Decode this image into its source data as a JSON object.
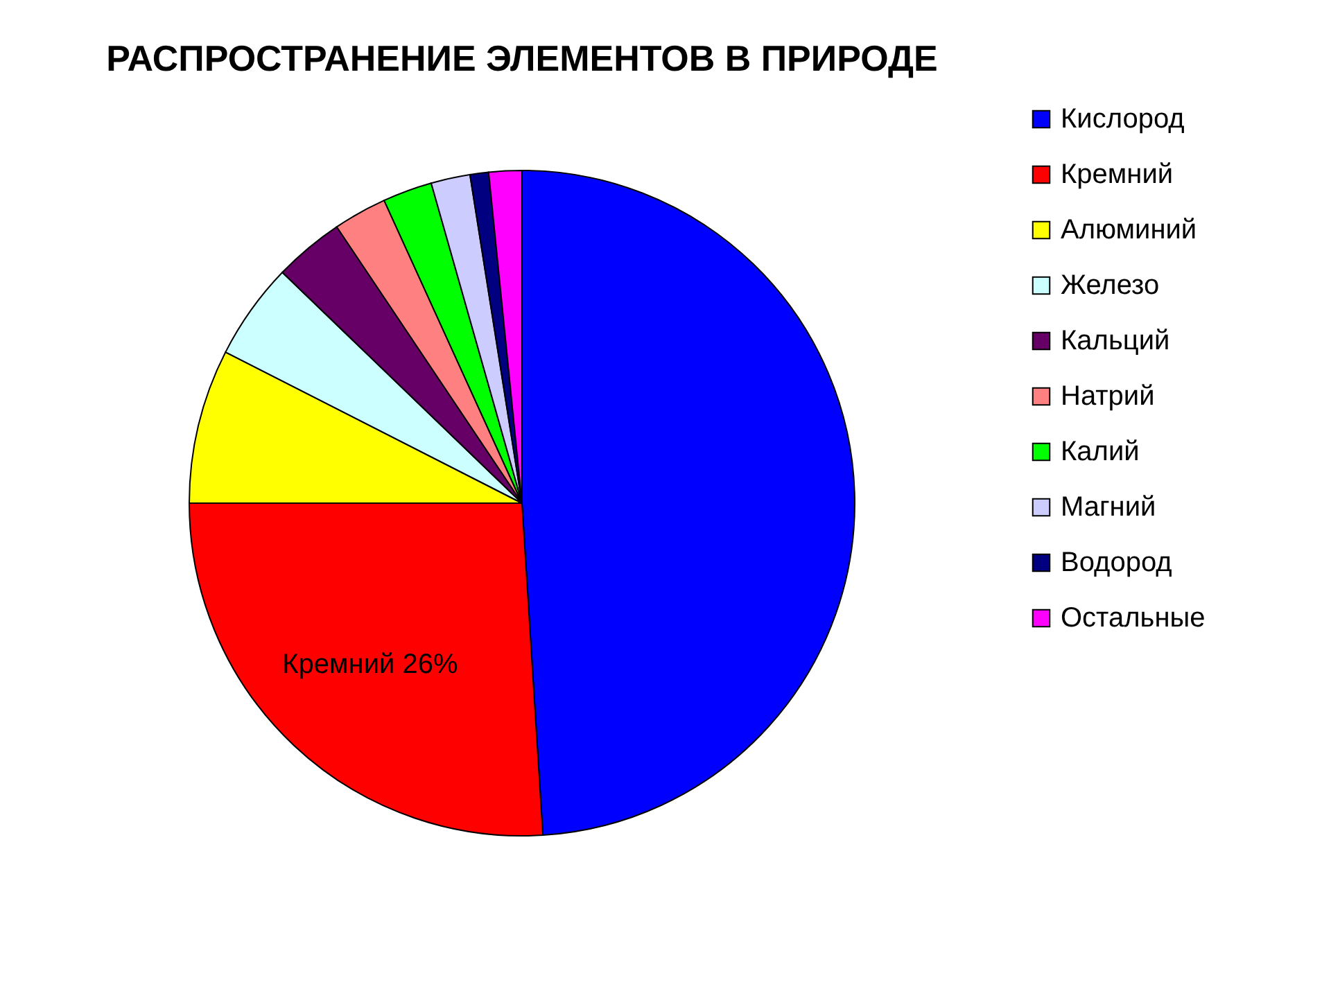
{
  "chart_data": {
    "type": "pie",
    "title": "РАСПРОСТРАНЕНИЕ ЭЛЕМЕНТОВ В ПРИРОДЕ",
    "categories": [
      "Кислород",
      "Кремний",
      "Алюминий",
      "Железо",
      "Кальций",
      "Натрий",
      "Калий",
      "Магний",
      "Водород",
      "Остальные"
    ],
    "values": [
      49,
      26,
      7.5,
      4.7,
      3.4,
      2.6,
      2.4,
      1.9,
      0.9,
      1.6
    ],
    "colors": [
      "#0000ff",
      "#ff0000",
      "#ffff00",
      "#ccffff",
      "#660066",
      "#ff8080",
      "#00ff00",
      "#ccccff",
      "#000080",
      "#ff00ff"
    ],
    "value_labels": [
      null,
      "Кремний 26%",
      null,
      null,
      null,
      null,
      null,
      null,
      null,
      null
    ],
    "legend": "right"
  }
}
